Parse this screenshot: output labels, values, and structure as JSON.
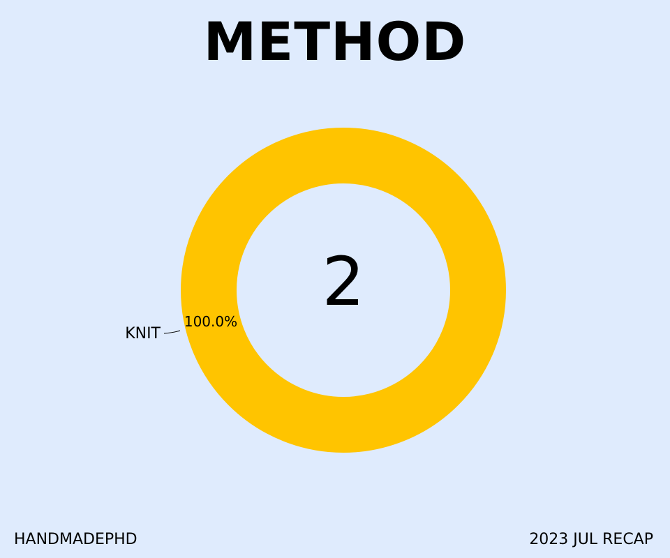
{
  "chart_data": {
    "type": "pie",
    "title": "METHOD",
    "center_label": "2",
    "slices": [
      {
        "label": "KNIT",
        "value": 100.0,
        "percent_label": "100.0%",
        "color": "#ffc400"
      }
    ]
  },
  "footer": {
    "left": "HANDMADEPHD",
    "right": "2023 JUL RECAP"
  },
  "colors": {
    "background": "#dfebfd",
    "text": "#000000"
  }
}
